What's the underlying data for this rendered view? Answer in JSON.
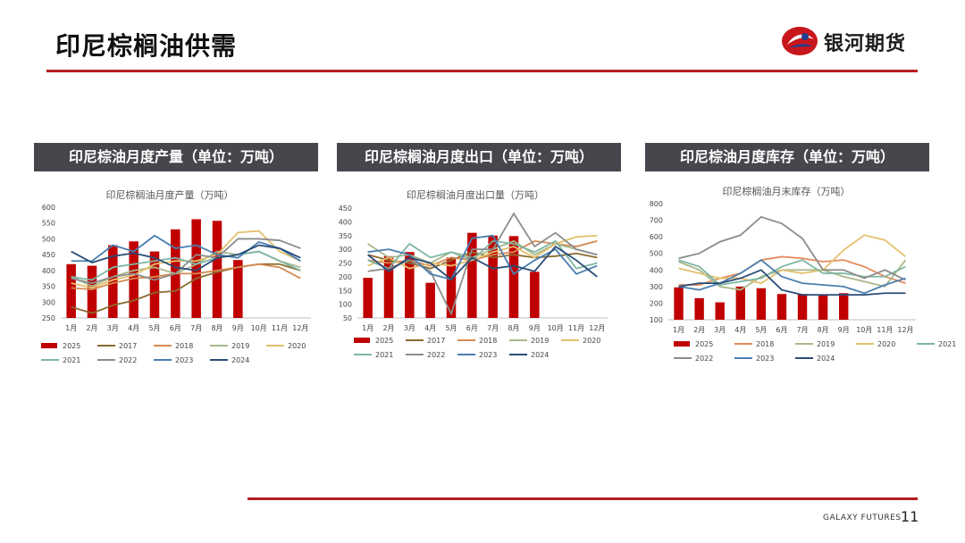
{
  "page": {
    "title": "印尼棕榈油供需",
    "brand": "银河期货",
    "footer": "GALAXY FUTURES",
    "page_number": "11",
    "accent_color": "#b41e23",
    "header_bar_color": "#45474c"
  },
  "panels": [
    {
      "header": "印尼棕油月度产量（单位：万吨）"
    },
    {
      "header": "印尼棕榈油月度出口（单位：万吨）"
    },
    {
      "header": "印尼棕油月度库存（单位：万吨）"
    }
  ],
  "chart_data": [
    {
      "type": "bar+line",
      "title": "印尼棕榈油月度产量（万吨）",
      "categories": [
        "1月",
        "2月",
        "3月",
        "4月",
        "5月",
        "6月",
        "7月",
        "8月",
        "9月",
        "10月",
        "11月",
        "12月"
      ],
      "ylim": [
        250,
        600
      ],
      "yticks": [
        250,
        300,
        350,
        400,
        450,
        500,
        550,
        600
      ],
      "grid": false,
      "legend_position": "bottom",
      "bar_series": {
        "name": "2025",
        "color": "#c00000",
        "values": [
          420,
          415,
          480,
          492,
          460,
          530,
          562,
          557,
          433,
          null,
          null,
          null
        ]
      },
      "series": [
        {
          "name": "2017",
          "color": "#8b6a2e",
          "values": [
            285,
            265,
            290,
            305,
            330,
            335,
            375,
            395,
            410,
            420,
            420,
            400
          ]
        },
        {
          "name": "2018",
          "color": "#d58a52",
          "values": [
            345,
            340,
            360,
            375,
            380,
            390,
            390,
            400,
            410,
            420,
            410,
            375
          ]
        },
        {
          "name": "2019",
          "color": "#a8b88b",
          "values": [
            380,
            350,
            380,
            400,
            410,
            390,
            420,
            460,
            450,
            460,
            430,
            410
          ]
        },
        {
          "name": "2020",
          "color": "#e3c06d",
          "values": [
            360,
            345,
            370,
            385,
            420,
            430,
            430,
            450,
            520,
            525,
            460,
            430
          ]
        },
        {
          "name": "2021",
          "color": "#7fb6a4",
          "values": [
            380,
            370,
            410,
            420,
            430,
            440,
            420,
            440,
            450,
            460,
            430,
            400
          ]
        },
        {
          "name": "2022",
          "color": "#8c8c8c",
          "values": [
            375,
            360,
            380,
            390,
            370,
            390,
            450,
            440,
            500,
            500,
            495,
            470
          ]
        },
        {
          "name": "2023",
          "color": "#4a7fb0",
          "values": [
            430,
            430,
            480,
            460,
            510,
            470,
            480,
            450,
            440,
            490,
            470,
            430
          ]
        },
        {
          "name": "2024",
          "color": "#2a4d78",
          "values": [
            460,
            425,
            445,
            455,
            440,
            410,
            400,
            440,
            450,
            480,
            470,
            440
          ]
        }
      ]
    },
    {
      "type": "bar+line",
      "title": "印尼棕榈油月度出口量（万吨）",
      "categories": [
        "1月",
        "2月",
        "3月",
        "4月",
        "5月",
        "6月",
        "7月",
        "8月",
        "9月",
        "10月",
        "11月",
        "12月"
      ],
      "ylim": [
        50,
        450
      ],
      "yticks": [
        50,
        100,
        150,
        200,
        250,
        300,
        350,
        400,
        450
      ],
      "grid": false,
      "legend_position": "bottom",
      "bar_series": {
        "name": "2025",
        "color": "#c00000",
        "values": [
          196,
          275,
          290,
          178,
          270,
          360,
          350,
          348,
          218,
          null,
          null,
          null
        ]
      },
      "series": [
        {
          "name": "2017",
          "color": "#8b6a2e",
          "values": [
            280,
            260,
            250,
            230,
            260,
            290,
            270,
            280,
            270,
            275,
            285,
            270
          ]
        },
        {
          "name": "2018",
          "color": "#d58a52",
          "values": [
            260,
            250,
            260,
            240,
            270,
            260,
            280,
            290,
            330,
            320,
            310,
            330
          ]
        },
        {
          "name": "2019",
          "color": "#a8b88b",
          "values": [
            320,
            270,
            280,
            250,
            290,
            270,
            300,
            330,
            280,
            320,
            300,
            280
          ]
        },
        {
          "name": "2020",
          "color": "#e3c06d",
          "values": [
            240,
            270,
            230,
            250,
            240,
            260,
            290,
            310,
            270,
            320,
            345,
            350
          ]
        },
        {
          "name": "2021",
          "color": "#7fb6a4",
          "values": [
            260,
            230,
            320,
            270,
            290,
            260,
            330,
            320,
            290,
            330,
            230,
            250
          ]
        },
        {
          "name": "2022",
          "color": "#8c8c8c",
          "values": [
            220,
            230,
            260,
            220,
            65,
            300,
            300,
            430,
            310,
            360,
            300,
            280
          ]
        },
        {
          "name": "2023",
          "color": "#4a7fb0",
          "values": [
            290,
            300,
            280,
            210,
            190,
            340,
            350,
            210,
            260,
            300,
            210,
            240
          ]
        },
        {
          "name": "2024",
          "color": "#2a4d78",
          "values": [
            280,
            220,
            270,
            250,
            190,
            270,
            230,
            240,
            220,
            310,
            260,
            200
          ]
        }
      ]
    },
    {
      "type": "bar+line",
      "title": "印尼棕榈油月末库存（万吨）",
      "categories": [
        "1月",
        "2月",
        "3月",
        "4月",
        "5月",
        "6月",
        "7月",
        "8月",
        "9月",
        "10月",
        "11月",
        "12月"
      ],
      "ylim": [
        100,
        800
      ],
      "yticks": [
        100,
        200,
        300,
        400,
        500,
        600,
        700,
        800
      ],
      "grid": false,
      "legend_position": "bottom",
      "bar_series": {
        "name": "2025",
        "color": "#c00000",
        "values": [
          295,
          230,
          205,
          300,
          290,
          255,
          255,
          250,
          260,
          null,
          null,
          null
        ]
      },
      "series": [
        {
          "name": "2018",
          "color": "#e58a5a",
          "values": [
            310,
            310,
            350,
            380,
            460,
            480,
            470,
            450,
            460,
            420,
            360,
            320
          ]
        },
        {
          "name": "2019",
          "color": "#a8b88b",
          "values": [
            450,
            400,
            300,
            280,
            360,
            400,
            400,
            400,
            360,
            330,
            300,
            460
          ]
        },
        {
          "name": "2020",
          "color": "#e3c06d",
          "values": [
            410,
            380,
            350,
            350,
            320,
            400,
            380,
            400,
            520,
            610,
            580,
            480
          ]
        },
        {
          "name": "2021",
          "color": "#7fb6a4",
          "values": [
            460,
            420,
            310,
            330,
            350,
            420,
            460,
            380,
            380,
            360,
            360,
            420
          ]
        },
        {
          "name": "2022",
          "color": "#8c8c8c",
          "values": [
            470,
            500,
            570,
            610,
            720,
            680,
            590,
            400,
            400,
            350,
            400,
            340
          ]
        },
        {
          "name": "2023",
          "color": "#4a7fb0",
          "values": [
            300,
            280,
            320,
            380,
            460,
            360,
            320,
            310,
            300,
            260,
            310,
            350
          ]
        },
        {
          "name": "2024",
          "color": "#2a4d78",
          "values": [
            300,
            320,
            320,
            350,
            400,
            280,
            250,
            250,
            250,
            250,
            260,
            260
          ]
        }
      ]
    }
  ]
}
